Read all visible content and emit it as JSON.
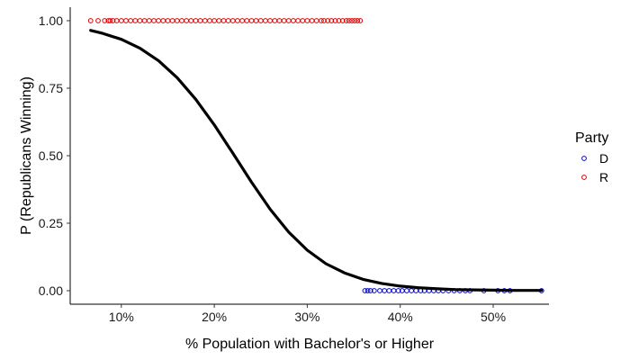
{
  "chart_data": {
    "type": "scatter",
    "xlabel": "% Population with Bachelor's or Higher",
    "ylabel": "P (Republicans Winning)",
    "xlim": [
      0.045,
      0.56
    ],
    "ylim": [
      -0.05,
      1.05
    ],
    "x_ticks": [
      0.1,
      0.2,
      0.3,
      0.4,
      0.5
    ],
    "x_tick_labels": [
      "10%",
      "20%",
      "30%",
      "40%",
      "50%"
    ],
    "y_ticks": [
      0.0,
      0.25,
      0.5,
      0.75,
      1.0
    ],
    "y_tick_labels": [
      "0.00",
      "0.25",
      "0.50",
      "0.75",
      "1.00"
    ],
    "grid": false,
    "legend": {
      "title": "Party",
      "placement": "right",
      "entries": [
        {
          "label": "D",
          "color": "#0000cc"
        },
        {
          "label": "R",
          "color": "#dd0000"
        }
      ]
    },
    "series": [
      {
        "name": "D",
        "color": "#0000cc",
        "y": 0,
        "x": [
          0.362,
          0.365,
          0.368,
          0.372,
          0.378,
          0.383,
          0.388,
          0.393,
          0.398,
          0.402,
          0.407,
          0.412,
          0.417,
          0.422,
          0.426,
          0.431,
          0.436,
          0.441,
          0.446,
          0.452,
          0.458,
          0.464,
          0.47,
          0.475,
          0.49,
          0.505,
          0.512,
          0.518,
          0.552
        ]
      },
      {
        "name": "R",
        "color": "#dd0000",
        "y": 1,
        "x": [
          0.067,
          0.075,
          0.082,
          0.086,
          0.088,
          0.091,
          0.095,
          0.1,
          0.105,
          0.11,
          0.115,
          0.12,
          0.125,
          0.13,
          0.135,
          0.14,
          0.145,
          0.15,
          0.155,
          0.16,
          0.165,
          0.17,
          0.175,
          0.18,
          0.185,
          0.19,
          0.195,
          0.2,
          0.205,
          0.21,
          0.215,
          0.22,
          0.225,
          0.23,
          0.235,
          0.24,
          0.245,
          0.25,
          0.255,
          0.26,
          0.265,
          0.27,
          0.275,
          0.28,
          0.285,
          0.29,
          0.295,
          0.3,
          0.305,
          0.31,
          0.315,
          0.318,
          0.322,
          0.326,
          0.33,
          0.334,
          0.338,
          0.342,
          0.345,
          0.348,
          0.351,
          0.354,
          0.357
        ]
      }
    ],
    "fit_curve": {
      "type": "logistic",
      "color": "#000000",
      "x": [
        0.067,
        0.08,
        0.1,
        0.12,
        0.14,
        0.16,
        0.18,
        0.2,
        0.22,
        0.24,
        0.26,
        0.28,
        0.3,
        0.32,
        0.34,
        0.36,
        0.38,
        0.4,
        0.42,
        0.44,
        0.46,
        0.48,
        0.5,
        0.52,
        0.552
      ],
      "y": [
        0.964,
        0.953,
        0.931,
        0.898,
        0.852,
        0.789,
        0.709,
        0.614,
        0.509,
        0.402,
        0.302,
        0.217,
        0.15,
        0.1,
        0.066,
        0.042,
        0.027,
        0.017,
        0.011,
        0.007,
        0.004,
        0.003,
        0.002,
        0.001,
        0.001
      ]
    }
  }
}
